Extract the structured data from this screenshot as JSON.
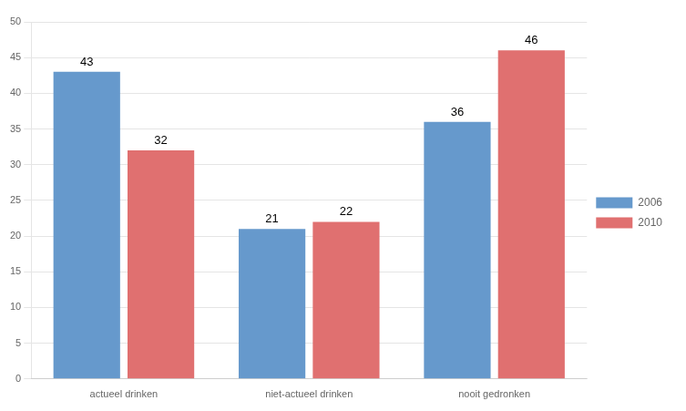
{
  "chart_data": {
    "type": "bar",
    "categories": [
      "actueel drinken",
      "niet-actueel drinken",
      "nooit gedronken"
    ],
    "series": [
      {
        "name": "2006",
        "color": "#6699CC",
        "values": [
          43,
          21,
          36
        ]
      },
      {
        "name": "2010",
        "color": "#E07070",
        "values": [
          32,
          22,
          46
        ]
      }
    ],
    "ylim": [
      0,
      50
    ],
    "yticks": [
      0,
      5,
      10,
      15,
      20,
      25,
      30,
      35,
      40,
      45,
      50
    ],
    "grid": true,
    "legend": "right",
    "data_labels": true
  }
}
